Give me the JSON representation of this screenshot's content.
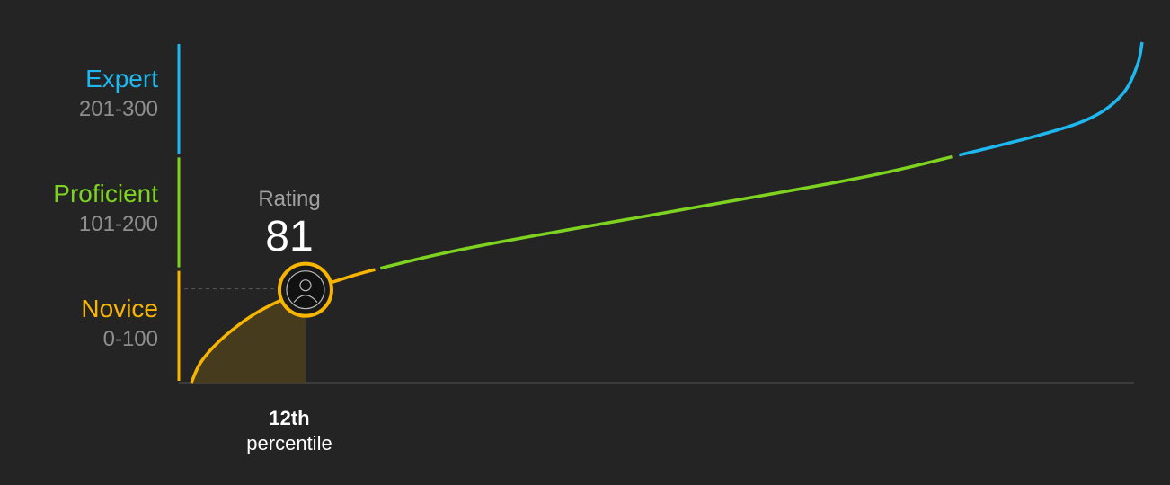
{
  "chart_data": {
    "type": "line",
    "x_axis": "percentile",
    "xlim": [
      0,
      100
    ],
    "ylim": [
      0,
      300
    ],
    "bands": [
      {
        "key": "expert",
        "name": "Expert",
        "range": "201-300",
        "min": 201,
        "max": 300,
        "color": "#1eb8f0"
      },
      {
        "key": "proficient",
        "name": "Proficient",
        "range": "101-200",
        "min": 101,
        "max": 200,
        "color": "#7ed321"
      },
      {
        "key": "novice",
        "name": "Novice",
        "range": "0-100",
        "min": 0,
        "max": 100,
        "color": "#f7b500"
      }
    ],
    "curve": [
      {
        "x": 0,
        "y": 0
      },
      {
        "x": 1,
        "y": 18
      },
      {
        "x": 3,
        "y": 37
      },
      {
        "x": 6,
        "y": 57
      },
      {
        "x": 9,
        "y": 71
      },
      {
        "x": 12,
        "y": 81
      },
      {
        "x": 15,
        "y": 89
      },
      {
        "x": 19.5,
        "y": 100
      },
      {
        "x": 30,
        "y": 120
      },
      {
        "x": 50,
        "y": 150
      },
      {
        "x": 70,
        "y": 180
      },
      {
        "x": 80.5,
        "y": 200
      },
      {
        "x": 90,
        "y": 220
      },
      {
        "x": 95,
        "y": 235
      },
      {
        "x": 98,
        "y": 255
      },
      {
        "x": 99.5,
        "y": 280
      },
      {
        "x": 100,
        "y": 300
      }
    ],
    "user": {
      "rating_label": "Rating",
      "rating": 81,
      "percentile": 12,
      "percentile_value": "12th",
      "percentile_label": "percentile",
      "icon": "user-avatar-icon"
    },
    "colors": {
      "background": "#242424",
      "axis": "#444444",
      "fill": "#4a3d1f",
      "guide": "#555555"
    }
  }
}
